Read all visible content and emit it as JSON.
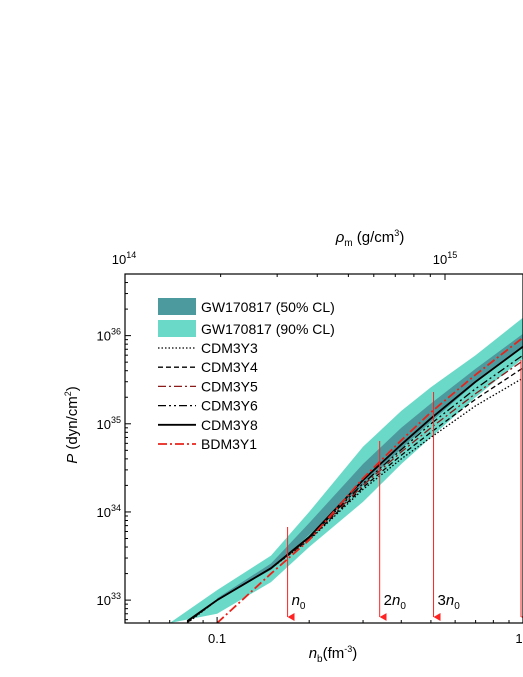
{
  "chart_data": {
    "type": "line",
    "title": "",
    "xlabel": {
      "main": "n",
      "sub": "b",
      "rest": "(fm",
      "sup": "-3",
      "end": ")"
    },
    "x2label": {
      "main": "ρ",
      "sub": "m",
      "rest": " (g/cm",
      "sup": "3",
      "end": ")"
    },
    "ylabel": {
      "main": "P",
      "rest": " (dyn/cm",
      "sup": "2",
      "end": ")"
    },
    "x_scale": "log",
    "y_scale": "log",
    "xlim": [
      0.05,
      1.0
    ],
    "ylim": [
      5.5e+32,
      5e+36
    ],
    "x_ticks": [
      {
        "value": 0.1,
        "label": "0.1"
      },
      {
        "value": 1.0,
        "label": "1"
      }
    ],
    "x2_ticks": [
      {
        "base": "10",
        "exp": "14"
      },
      {
        "base": "10",
        "exp": "15"
      }
    ],
    "y_ticks": [
      {
        "value": 1e+33,
        "base": "10",
        "exp": "33"
      },
      {
        "value": 1e+34,
        "base": "10",
        "exp": "34"
      },
      {
        "value": 1e+35,
        "base": "10",
        "exp": "35"
      },
      {
        "value": 1e+36,
        "base": "10",
        "exp": "36"
      }
    ],
    "legend_position": "top-left",
    "bands": [
      {
        "name": "GW170817 (90% CL)",
        "color": "#6ad9c8",
        "x": [
          0.07,
          0.1,
          0.15,
          0.2,
          0.3,
          0.4,
          0.5,
          0.7,
          1.0
        ],
        "lower": [
          5.5e+32,
          7e+32,
          1.6e+33,
          4e+33,
          1.3e+34,
          3.5e+34,
          7e+34,
          2e+35,
          5.5e+35
        ],
        "upper": [
          5.5e+32,
          1.3e+33,
          3.2e+33,
          1e+34,
          5.5e+34,
          1.4e+35,
          2.6e+35,
          6e+35,
          1.6e+36
        ]
      },
      {
        "name": "GW170817 (50% CL)",
        "color": "#4c9a9e",
        "x": [
          0.1,
          0.15,
          0.2,
          0.3,
          0.4,
          0.5,
          0.7,
          1.0
        ],
        "lower": [
          1e+33,
          2.2e+33,
          5.5e+33,
          2e+34,
          5.2e+34,
          1.05e+35,
          2.9e+35,
          7.5e+35
        ],
        "upper": [
          1.05e+33,
          2.6e+33,
          7.5e+33,
          3.5e+34,
          9e+34,
          1.7e+35,
          4.2e+35,
          1.05e+36
        ]
      }
    ],
    "series": [
      {
        "name": "CDM3Y3",
        "color": "#000000",
        "dash": "1.5,2",
        "width": 1.3,
        "x": [
          0.08,
          0.1,
          0.15,
          0.2,
          0.3,
          0.4,
          0.5,
          0.7,
          1.0
        ],
        "y": [
          5.5e+32,
          1e+33,
          2.3e+33,
          4.8e+33,
          1.8e+34,
          4e+34,
          7e+34,
          1.6e+35,
          3.3e+35
        ]
      },
      {
        "name": "CDM3Y4",
        "color": "#000000",
        "dash": "5,3",
        "width": 1.3,
        "x": [
          0.08,
          0.1,
          0.15,
          0.2,
          0.3,
          0.4,
          0.5,
          0.7,
          1.0
        ],
        "y": [
          5.6e+32,
          1e+33,
          2.3e+33,
          4.9e+33,
          1.9e+34,
          4.4e+34,
          8e+34,
          1.9e+35,
          4.3e+35
        ]
      },
      {
        "name": "CDM3Y5",
        "color": "#8b1a1a",
        "dash": "8,3,2,3",
        "width": 1.3,
        "x": [
          0.08,
          0.1,
          0.15,
          0.2,
          0.3,
          0.4,
          0.5,
          0.7,
          1.0
        ],
        "y": [
          5.7e+32,
          1e+33,
          2.3e+33,
          5e+33,
          2e+34,
          4.8e+34,
          9e+34,
          2.2e+35,
          5.2e+35
        ]
      },
      {
        "name": "CDM3Y6",
        "color": "#000000",
        "dash": "8,3,2,3,2,3",
        "width": 1.3,
        "x": [
          0.08,
          0.1,
          0.15,
          0.2,
          0.3,
          0.4,
          0.5,
          0.7,
          1.0
        ],
        "y": [
          5.7e+32,
          1e+33,
          2.3e+33,
          5.1e+33,
          2.1e+34,
          5.1e+34,
          1e+35,
          2.5e+35,
          6e+35
        ]
      },
      {
        "name": "CDM3Y8",
        "color": "#000000",
        "dash": "",
        "width": 1.8,
        "x": [
          0.08,
          0.1,
          0.15,
          0.2,
          0.3,
          0.4,
          0.5,
          0.7,
          1.0
        ],
        "y": [
          5.8e+32,
          1e+33,
          2.3e+33,
          5.2e+33,
          2.3e+34,
          5.8e+34,
          1.15e+35,
          3e+35,
          7.5e+35
        ]
      },
      {
        "name": "BDM3Y1",
        "color": "#e8231a",
        "dash": "9,3,2,3",
        "width": 1.8,
        "x": [
          0.1,
          0.15,
          0.2,
          0.3,
          0.4,
          0.5,
          0.7,
          1.0
        ],
        "y": [
          5.5e+32,
          2e+33,
          4.8e+33,
          2.4e+34,
          6.5e+34,
          1.35e+35,
          3.6e+35,
          9.5e+35
        ]
      }
    ],
    "vlines": [
      {
        "x": 0.17,
        "label_main": "n",
        "label_prefix": "",
        "label_sub": "0",
        "color": "#ff2222"
      },
      {
        "x": 0.34,
        "label_main": "n",
        "label_prefix": "2",
        "label_sub": "0",
        "color": "#ff2222"
      },
      {
        "x": 0.51,
        "label_main": "n",
        "label_prefix": "3",
        "label_sub": "0",
        "color": "#ff2222"
      },
      {
        "x": 1.0,
        "label_main": "",
        "label_prefix": "",
        "label_sub": "",
        "color": "#ff2222"
      }
    ]
  }
}
